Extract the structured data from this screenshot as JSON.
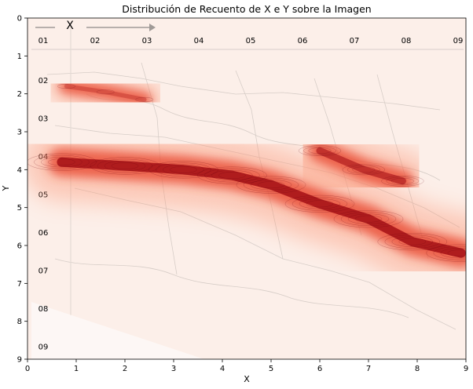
{
  "chart_data": {
    "type": "heatmap",
    "title": "Distribución de Recuento de X e Y sobre la Imagen",
    "xlabel": "X",
    "ylabel": "Y",
    "xlim": [
      0,
      9
    ],
    "ylim": [
      9,
      0
    ],
    "y_inverted": true,
    "grid": false,
    "colormap": "Reds",
    "x_ticks": [
      0,
      1,
      2,
      3,
      4,
      5,
      6,
      7,
      8,
      9
    ],
    "y_ticks": [
      0,
      1,
      2,
      3,
      4,
      5,
      6,
      7,
      8,
      9
    ],
    "density_ridges": [
      {
        "points": [
          [
            0.8,
            1.8
          ],
          [
            1.6,
            1.95
          ],
          [
            2.4,
            2.15
          ]
        ],
        "peak": 0.35
      },
      {
        "points": [
          [
            0.7,
            3.8
          ],
          [
            2.0,
            3.9
          ],
          [
            3.2,
            4.0
          ],
          [
            4.2,
            4.15
          ],
          [
            5.0,
            4.4
          ],
          [
            6.0,
            4.9
          ],
          [
            7.0,
            5.3
          ],
          [
            7.9,
            5.9
          ],
          [
            8.9,
            6.2
          ]
        ],
        "peak": 1.0
      },
      {
        "points": [
          [
            6.0,
            3.5
          ],
          [
            6.9,
            4.0
          ],
          [
            7.7,
            4.3
          ]
        ],
        "peak": 0.7
      }
    ],
    "background_map": {
      "top_labels": [
        "01",
        "02",
        "03",
        "04",
        "05",
        "06",
        "07",
        "08",
        "09"
      ],
      "side_labels": [
        "02",
        "03",
        "04",
        "05",
        "06",
        "07",
        "08",
        "09"
      ],
      "header_letter": "X"
    }
  }
}
